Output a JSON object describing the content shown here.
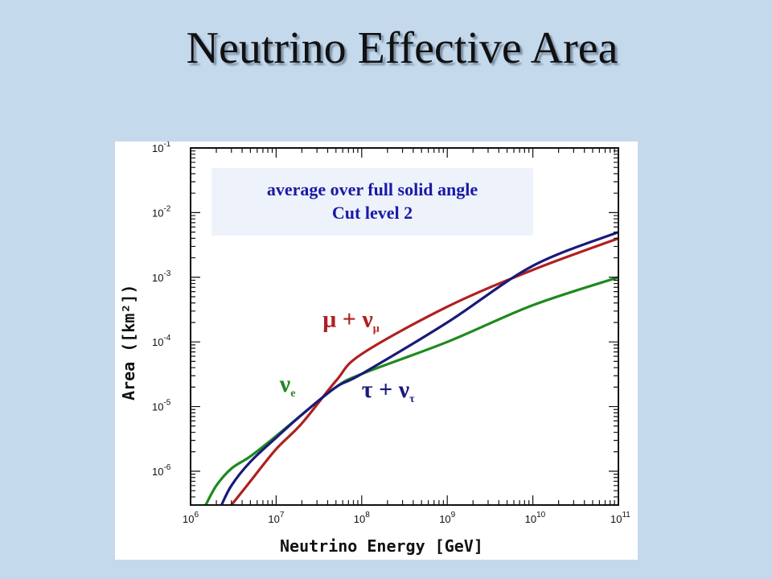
{
  "slide": {
    "title": "Neutrino Effective Area",
    "background": "#c5d9ed"
  },
  "annotation": {
    "line1": "average over full solid angle",
    "line2": "Cut level 2",
    "color": "#1a1aa6"
  },
  "chart_data": {
    "type": "line",
    "xlabel": "Neutrino Energy [GeV]",
    "ylabel": "Area ([km²])",
    "x_scale": "log",
    "y_scale": "log",
    "xlim": [
      1000000,
      100000000000
    ],
    "ylim": [
      3e-07,
      0.1
    ],
    "x_ticks": [
      {
        "value": 1000000,
        "base": "10",
        "exp": "6"
      },
      {
        "value": 10000000,
        "base": "10",
        "exp": "7"
      },
      {
        "value": 100000000,
        "base": "10",
        "exp": "8"
      },
      {
        "value": 1000000000,
        "base": "10",
        "exp": "9"
      },
      {
        "value": 10000000000,
        "base": "10",
        "exp": "10"
      },
      {
        "value": 100000000000,
        "base": "10",
        "exp": "11"
      }
    ],
    "y_ticks": [
      {
        "value": 1e-06,
        "base": "10",
        "exp": "-6"
      },
      {
        "value": 1e-05,
        "base": "10",
        "exp": "-5"
      },
      {
        "value": 0.0001,
        "base": "10",
        "exp": "-4"
      },
      {
        "value": 0.001,
        "base": "10",
        "exp": "-3"
      },
      {
        "value": 0.01,
        "base": "10",
        "exp": "-2"
      },
      {
        "value": 0.1,
        "base": "10",
        "exp": "-1"
      }
    ],
    "grid": false,
    "series": [
      {
        "name": "νe",
        "label_main": "ν",
        "label_sub": "e",
        "color": "#1e8a1e",
        "x": [
          1500000,
          2000000,
          3000000,
          5000000,
          10000000,
          20000000,
          50000000,
          100000000,
          1000000000,
          10000000000,
          100000000000
        ],
        "y": [
          3e-07,
          6e-07,
          1.1e-06,
          1.7e-06,
          3.5e-06,
          7.5e-06,
          2e-05,
          3.2e-05,
          0.0001,
          0.00037,
          0.001
        ]
      },
      {
        "name": "μ + νμ",
        "label_main": "μ + ν",
        "label_sub": "μ",
        "color": "#b02020",
        "x": [
          3000000,
          5000000,
          10000000,
          20000000,
          50000000,
          100000000,
          1000000000,
          10000000000,
          100000000000
        ],
        "y": [
          3e-07,
          7e-07,
          2.2e-06,
          5.5e-06,
          2.5e-05,
          6.5e-05,
          0.00035,
          0.0013,
          0.004
        ]
      },
      {
        "name": "τ + ντ",
        "label_main": "τ + ν",
        "label_sub": "τ",
        "color": "#1a1a7a",
        "x": [
          2300000,
          3000000,
          5000000,
          10000000,
          20000000,
          50000000,
          100000000,
          1000000000,
          10000000000,
          100000000000
        ],
        "y": [
          3e-07,
          6e-07,
          1.4e-06,
          3.3e-06,
          7.5e-06,
          2e-05,
          3.2e-05,
          0.0002,
          0.0015,
          0.005
        ]
      }
    ]
  }
}
